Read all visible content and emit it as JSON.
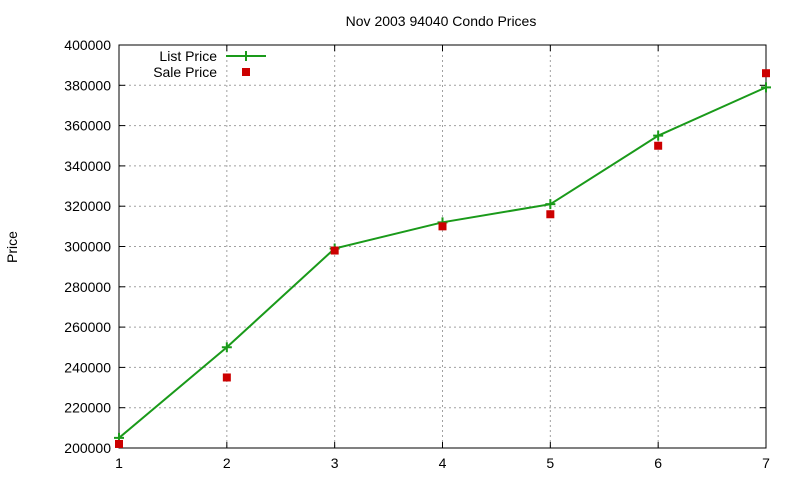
{
  "chart_data": {
    "type": "line",
    "title": "Nov 2003 94040 Condo Prices",
    "xlabel": "",
    "ylabel": "Price",
    "x": [
      1,
      2,
      3,
      4,
      5,
      6,
      7
    ],
    "xlim": [
      1,
      7
    ],
    "ylim": [
      200000,
      400000
    ],
    "xticks": [
      "1",
      "2",
      "3",
      "4",
      "5",
      "6",
      "7"
    ],
    "yticks": [
      "200000",
      "220000",
      "240000",
      "260000",
      "280000",
      "300000",
      "320000",
      "340000",
      "360000",
      "380000",
      "400000"
    ],
    "grid": true,
    "legend_position": "top-left",
    "series": [
      {
        "name": "List Price",
        "style": "line-with-plus-markers",
        "color": "#1a9a1a",
        "values": [
          205000,
          250000,
          299000,
          312000,
          321000,
          355000,
          379000
        ]
      },
      {
        "name": "Sale Price",
        "style": "square-markers",
        "color": "#cc0000",
        "values": [
          202000,
          235000,
          298000,
          310000,
          316000,
          350000,
          386000
        ]
      }
    ]
  }
}
